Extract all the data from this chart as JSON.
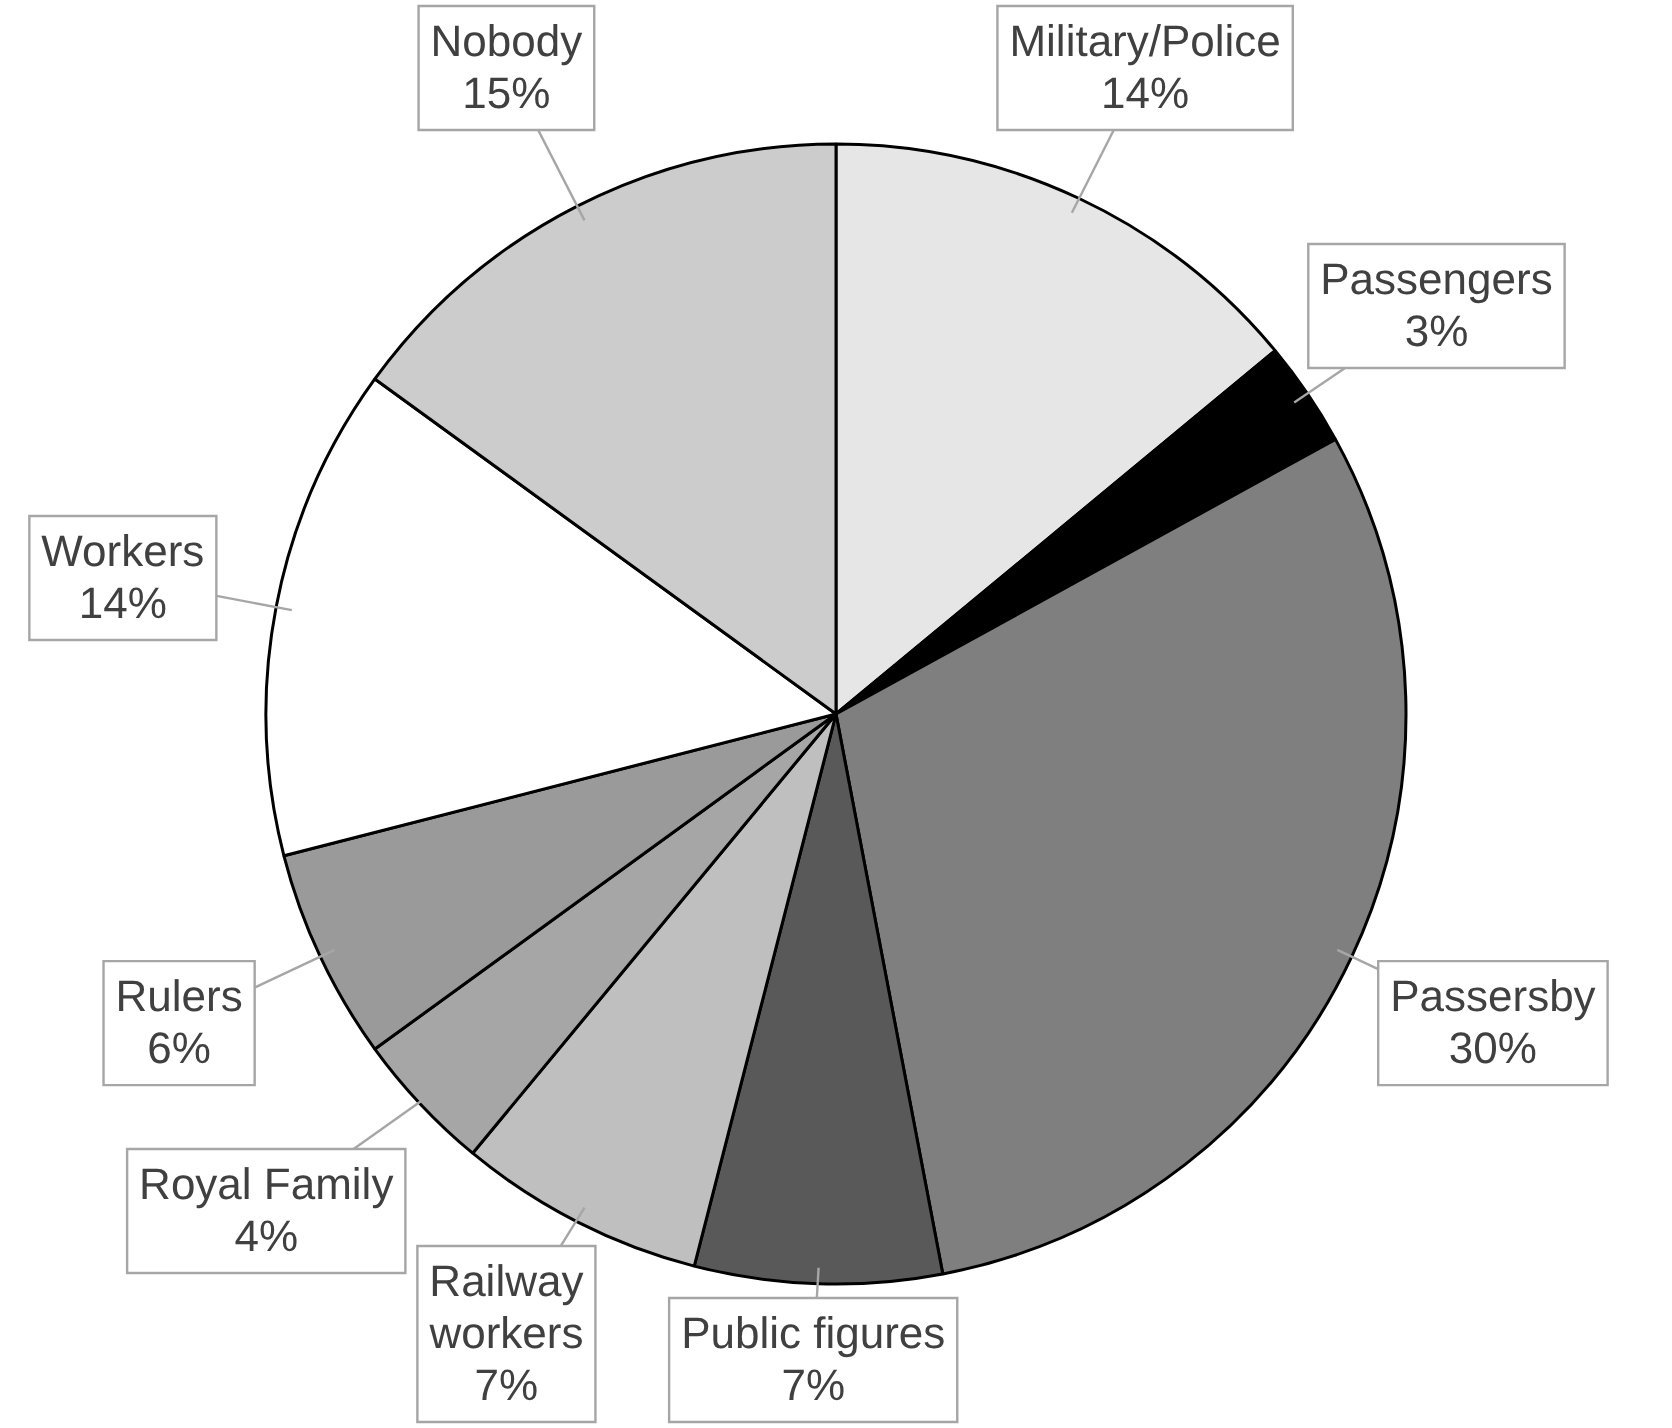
{
  "chart_data": {
    "type": "pie",
    "categories": [
      "Military/Police",
      "Passengers",
      "Passersby",
      "Public figures",
      "Railway workers",
      "Royal Family",
      "Rulers",
      "Workers",
      "Nobody"
    ],
    "values": [
      14,
      3,
      30,
      7,
      7,
      4,
      6,
      14,
      15
    ],
    "value_labels": [
      "14%",
      "3%",
      "30%",
      "7%",
      "7%",
      "4%",
      "6%",
      "14%",
      "15%"
    ],
    "colors": [
      "#e6e6e6",
      "#000000",
      "#7f7f7f",
      "#595959",
      "#bfbfbf",
      "#a6a6a6",
      "#9a9a9a",
      "#ffffff",
      "#cccccc"
    ],
    "legend": false
  }
}
